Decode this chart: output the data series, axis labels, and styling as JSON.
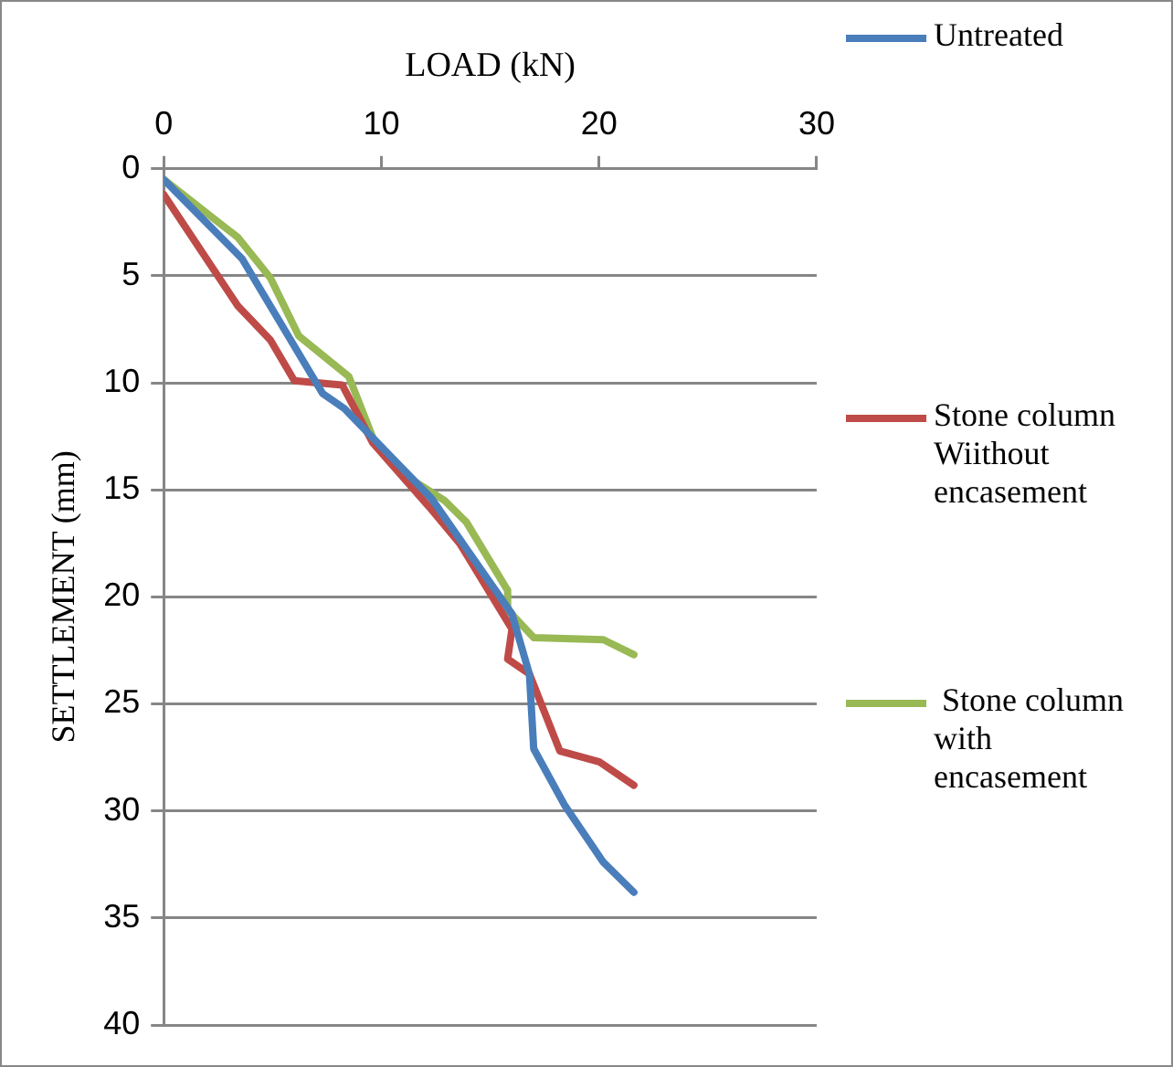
{
  "chart_data": {
    "type": "line",
    "xlabel": "LOAD (kN)",
    "ylabel": "SETTLEMENT (mm)",
    "xlim": [
      0,
      30
    ],
    "xticks": [
      0,
      10,
      20,
      30
    ],
    "ylim": [
      40,
      0
    ],
    "yticks": [
      0,
      5,
      10,
      15,
      20,
      25,
      30,
      35,
      40
    ],
    "grid": "y",
    "legend": "right",
    "marker": "none",
    "line_style": "solid",
    "series": [
      {
        "name": "Untreated",
        "color": "#4a7ebb",
        "x": [
          0,
          3.6,
          7.3,
          8.3,
          12.3,
          16,
          16.8,
          17,
          18.4,
          20.2,
          21.6
        ],
        "values": [
          0.5,
          4.2,
          10.5,
          11.2,
          15.4,
          20.8,
          23.6,
          27.1,
          29.7,
          32.4,
          33.8
        ]
      },
      {
        "name": "Stone column Wiithout encasement",
        "color": "#be4b48",
        "x": [
          0,
          3.4,
          4.9,
          6,
          8.2,
          9.6,
          12.2,
          13.6,
          16,
          15.8,
          16.8,
          18.2,
          20,
          21.6
        ],
        "values": [
          1.2,
          6.4,
          8,
          9.9,
          10.1,
          12.8,
          15.8,
          17.5,
          21.5,
          22.9,
          23.6,
          27.2,
          27.7,
          28.8
        ]
      },
      {
        "name": " Stone column with encasement",
        "color": "#98b954",
        "x": [
          0,
          3.4,
          4.9,
          6.2,
          8.5,
          9.7,
          11.2,
          12.9,
          13.9,
          15.8,
          15.8,
          17,
          20.2,
          21.6
        ],
        "values": [
          0.5,
          3.2,
          5.1,
          7.8,
          9.7,
          12.8,
          14.4,
          15.5,
          16.5,
          19.7,
          20.6,
          21.9,
          22,
          22.7
        ]
      }
    ]
  }
}
